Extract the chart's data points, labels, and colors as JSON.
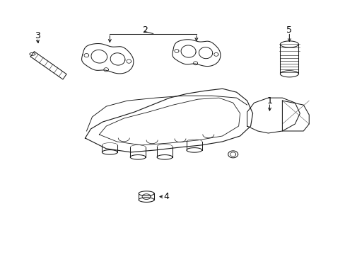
{
  "background_color": "#ffffff",
  "line_color": "#1a1a1a",
  "label_color": "#000000",
  "fig_width": 4.89,
  "fig_height": 3.6,
  "dpi": 100,
  "lw": 0.75
}
